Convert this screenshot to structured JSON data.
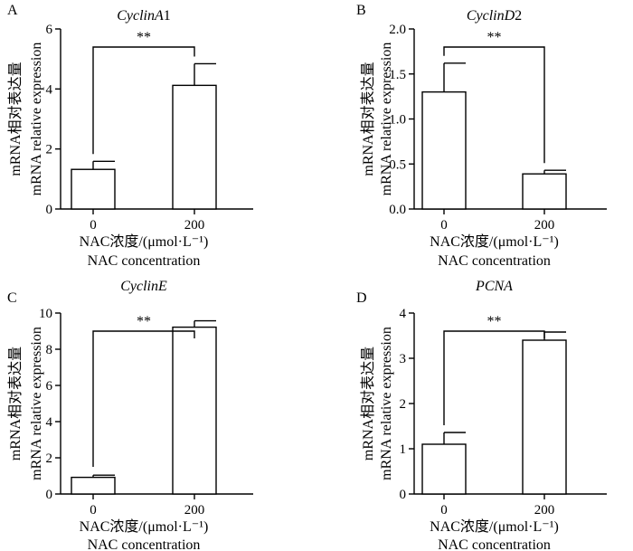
{
  "figure": {
    "xlabel_line1": "NAC浓度/(μmol·L⁻¹)",
    "xlabel_line2": "NAC concentration",
    "ylabel_line1": "mRNA相对表达量",
    "ylabel_line2": "mRNA relative expression"
  },
  "chart_data": [
    {
      "panel": "A",
      "type": "bar",
      "title": "CyclinA",
      "title_suffix": "1",
      "categories": [
        "0",
        "200"
      ],
      "values": [
        1.32,
        4.12
      ],
      "errors": [
        0.27,
        0.72
      ],
      "yticks": [
        "0",
        "2",
        "4",
        "6"
      ],
      "ytick_values": [
        0,
        2,
        4,
        6
      ],
      "ylim": [
        0,
        6
      ],
      "significance": "**",
      "xlabel": "NAC浓度/(μmol·L⁻¹) NAC concentration",
      "ylabel": "mRNA相对表达量 mRNA relative expression"
    },
    {
      "panel": "B",
      "type": "bar",
      "title": "CyclinD",
      "title_suffix": "2",
      "categories": [
        "0",
        "200"
      ],
      "values": [
        1.3,
        0.39
      ],
      "errors": [
        0.32,
        0.04
      ],
      "yticks": [
        "0.0",
        "0.5",
        "1.0",
        "1.5",
        "2.0"
      ],
      "ytick_values": [
        0,
        0.5,
        1.0,
        1.5,
        2.0
      ],
      "ylim": [
        0,
        2
      ],
      "significance": "**",
      "xlabel": "NAC浓度/(μmol·L⁻¹) NAC concentration",
      "ylabel": "mRNA相对表达量 mRNA relative expression"
    },
    {
      "panel": "C",
      "type": "bar",
      "title": "CyclinE",
      "title_suffix": "",
      "categories": [
        "0",
        "200"
      ],
      "values": [
        0.92,
        9.22
      ],
      "errors": [
        0.12,
        0.35
      ],
      "yticks": [
        "0",
        "2",
        "4",
        "6",
        "8",
        "10"
      ],
      "ytick_values": [
        0,
        2,
        4,
        6,
        8,
        10
      ],
      "ylim": [
        0,
        10
      ],
      "significance": "**",
      "xlabel": "NAC浓度/(μmol·L⁻¹) NAC concentration",
      "ylabel": "mRNA相对表达量 mRNA relative expression"
    },
    {
      "panel": "D",
      "type": "bar",
      "title": "PCNA",
      "title_suffix": "",
      "categories": [
        "0",
        "200"
      ],
      "values": [
        1.1,
        3.4
      ],
      "errors": [
        0.26,
        0.18
      ],
      "yticks": [
        "0",
        "1",
        "2",
        "3",
        "4"
      ],
      "ytick_values": [
        0,
        1,
        2,
        3,
        4
      ],
      "ylim": [
        0,
        4
      ],
      "significance": "**",
      "xlabel": "NAC浓度/(μmol·L⁻¹) NAC concentration",
      "ylabel": "mRNA相对表达量 mRNA relative expression"
    }
  ]
}
